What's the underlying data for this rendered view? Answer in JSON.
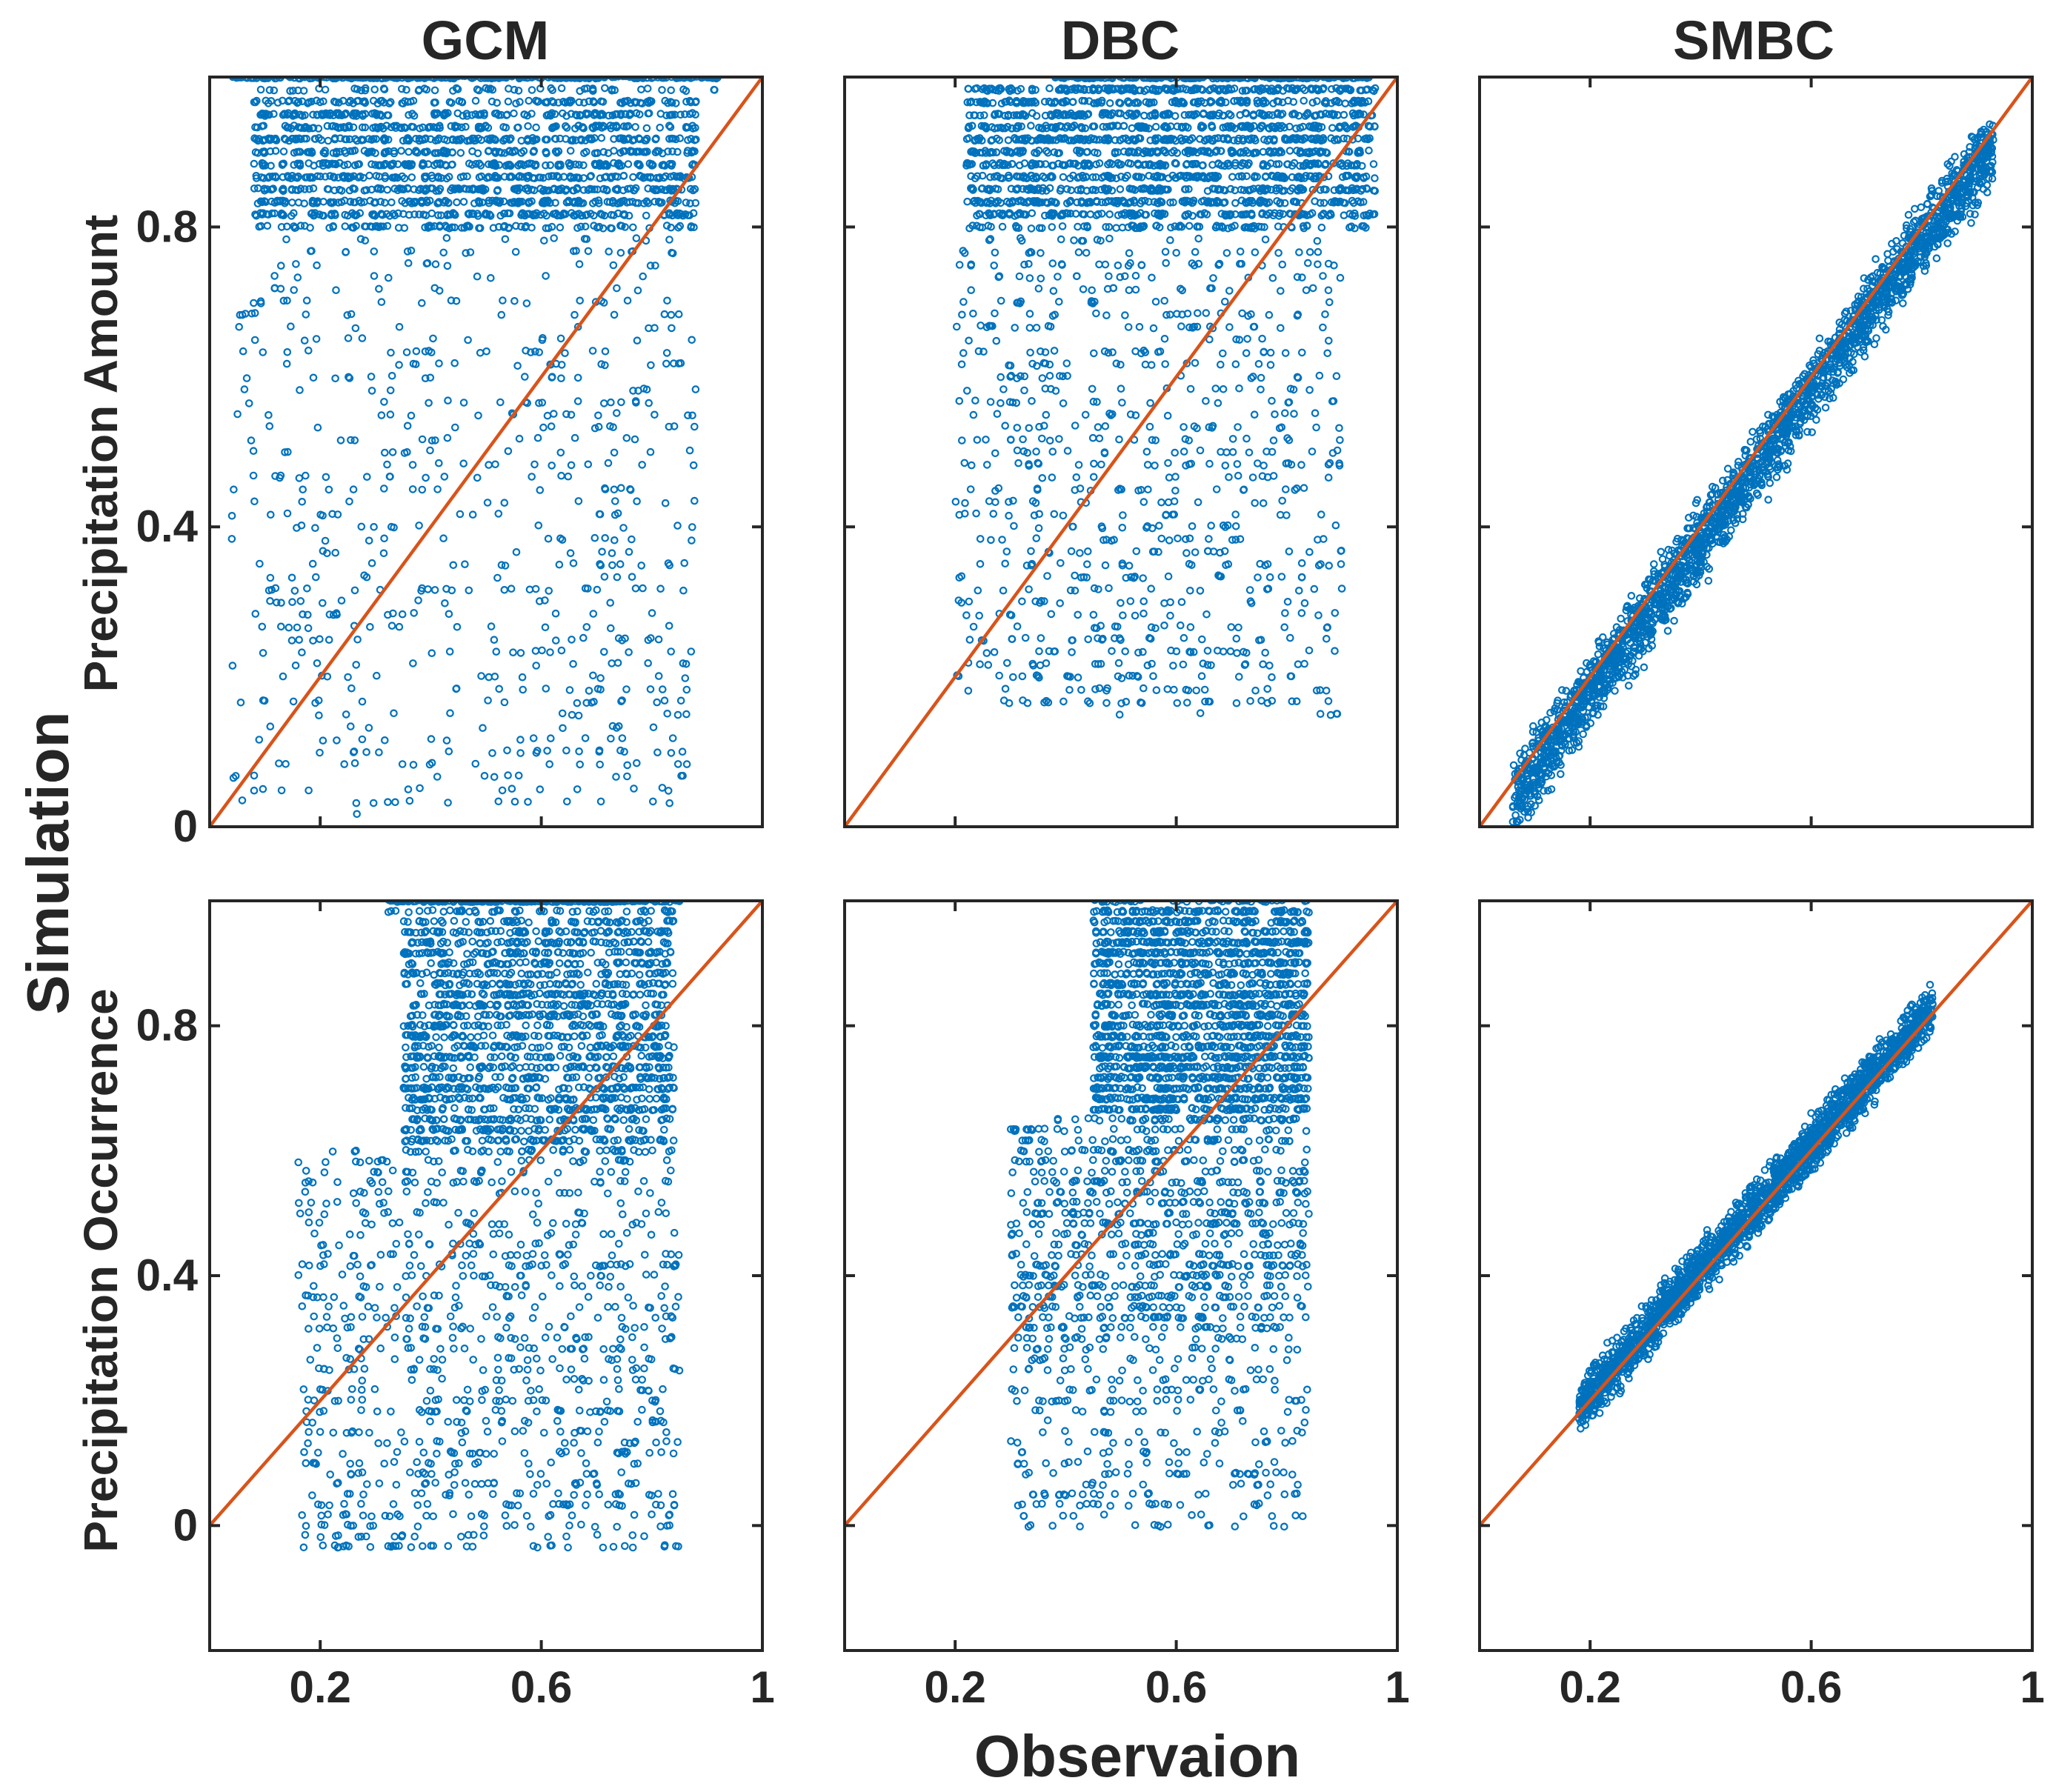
{
  "figure": {
    "x_label": "Observaion",
    "y_label": "Simulation",
    "row_labels": [
      "Precipitation Amount",
      "Precipitation Occurrence"
    ],
    "column_titles": [
      "GCM",
      "DBC",
      "SMBC"
    ]
  },
  "colors": {
    "points": "#0072BD",
    "reference_line": "#D95319",
    "axes": "#262626"
  },
  "chart_data": [
    {
      "id": "amount-gcm",
      "type": "scatter",
      "row": 0,
      "col": 0,
      "title": "GCM",
      "xlim": [
        0,
        1
      ],
      "ylim": [
        0,
        1
      ],
      "xticks": [
        0.2,
        0.6,
        1
      ],
      "xtick_labels": [
        "0.2",
        "0.6",
        "1"
      ],
      "yticks": [
        0,
        0.4,
        0.8
      ],
      "ytick_labels": [
        "0",
        "0.4",
        "0.8"
      ],
      "show_xtick_labels": false,
      "show_ytick_labels": true,
      "reference_line": {
        "from": [
          0,
          0
        ],
        "to": [
          1,
          1
        ]
      },
      "point_groups": [
        {
          "x_range": [
            0.04,
            0.92
          ],
          "y_range": [
            0.99,
            1.0
          ],
          "count": 420
        },
        {
          "x_range": [
            0.08,
            0.88
          ],
          "y_range": [
            0.8,
            0.97
          ],
          "count": 1500
        },
        {
          "x_range": [
            0.04,
            0.88
          ],
          "y_range": [
            0.02,
            0.8
          ],
          "count": 650
        }
      ]
    },
    {
      "id": "amount-dbc",
      "type": "scatter",
      "row": 0,
      "col": 1,
      "title": "DBC",
      "xlim": [
        0,
        1
      ],
      "ylim": [
        0,
        1
      ],
      "xticks": [
        0.2,
        0.6,
        1
      ],
      "xtick_labels": [
        "0.2",
        "0.6",
        "1"
      ],
      "yticks": [
        0,
        0.4,
        0.8
      ],
      "ytick_labels": [
        "0",
        "0.4",
        "0.8"
      ],
      "show_xtick_labels": false,
      "show_ytick_labels": false,
      "reference_line": {
        "from": [
          0,
          0
        ],
        "to": [
          1,
          1
        ]
      },
      "point_groups": [
        {
          "x_range": [
            0.38,
            0.95
          ],
          "y_range": [
            0.99,
            1.0
          ],
          "count": 350
        },
        {
          "x_range": [
            0.22,
            0.96
          ],
          "y_range": [
            0.8,
            0.99
          ],
          "count": 1700
        },
        {
          "x_range": [
            0.2,
            0.9
          ],
          "y_range": [
            0.15,
            0.8
          ],
          "count": 800
        }
      ]
    },
    {
      "id": "amount-smbc",
      "type": "scatter",
      "row": 0,
      "col": 2,
      "title": "SMBC",
      "xlim": [
        0,
        1
      ],
      "ylim": [
        0,
        1
      ],
      "xticks": [
        0.2,
        0.6,
        1
      ],
      "xtick_labels": [
        "0.2",
        "0.6",
        "1"
      ],
      "yticks": [
        0,
        0.4,
        0.8
      ],
      "ytick_labels": [
        "0",
        "0.4",
        "0.8"
      ],
      "show_xtick_labels": false,
      "show_ytick_labels": false,
      "reference_line": {
        "from": [
          0,
          0
        ],
        "to": [
          1,
          1
        ]
      },
      "point_groups": [
        {
          "x_range": [
            0.06,
            0.93
          ],
          "y_center_offset": -0.02,
          "y_spread": 0.035,
          "count": 2400
        }
      ]
    },
    {
      "id": "occurrence-gcm",
      "type": "scatter",
      "row": 1,
      "col": 0,
      "title": "",
      "xlim": [
        0,
        1
      ],
      "ylim": [
        -0.2,
        1
      ],
      "xticks": [
        0.2,
        0.6,
        1
      ],
      "xtick_labels": [
        "0.2",
        "0.6",
        "1"
      ],
      "yticks": [
        0,
        0.4,
        0.8
      ],
      "ytick_labels": [
        "0",
        "0.4",
        "0.8"
      ],
      "show_xtick_labels": true,
      "show_ytick_labels": true,
      "reference_line": {
        "from": [
          -0.2,
          -0.2
        ],
        "to": [
          1,
          1
        ]
      },
      "point_groups": [
        {
          "x_range": [
            0.32,
            0.85
          ],
          "y_range": [
            0.99,
            1.0
          ],
          "count": 300
        },
        {
          "x_range": [
            0.35,
            0.84
          ],
          "y_range": [
            0.6,
            0.97
          ],
          "count": 1600
        },
        {
          "x_range": [
            0.16,
            0.85
          ],
          "y_range": [
            -0.04,
            0.6
          ],
          "count": 900
        }
      ]
    },
    {
      "id": "occurrence-dbc",
      "type": "scatter",
      "row": 1,
      "col": 1,
      "title": "",
      "xlim": [
        0,
        1
      ],
      "ylim": [
        -0.2,
        1
      ],
      "xticks": [
        0.2,
        0.6,
        1
      ],
      "xtick_labels": [
        "0.2",
        "0.6",
        "1"
      ],
      "yticks": [
        0,
        0.4,
        0.8
      ],
      "ytick_labels": [
        "0",
        "0.4",
        "0.8"
      ],
      "show_xtick_labels": true,
      "show_ytick_labels": false,
      "reference_line": {
        "from": [
          -0.2,
          -0.2
        ],
        "to": [
          1,
          1
        ]
      },
      "point_groups": [
        {
          "x_range": [
            0.45,
            0.84
          ],
          "y_range": [
            0.65,
            1.0
          ],
          "count": 1800
        },
        {
          "x_range": [
            0.3,
            0.84
          ],
          "y_range": [
            0.3,
            0.65
          ],
          "count": 800
        },
        {
          "x_range": [
            0.3,
            0.84
          ],
          "y_range": [
            0.0,
            0.3
          ],
          "count": 300
        }
      ]
    },
    {
      "id": "occurrence-smbc",
      "type": "scatter",
      "row": 1,
      "col": 2,
      "title": "",
      "xlim": [
        0,
        1
      ],
      "ylim": [
        -0.2,
        1
      ],
      "xticks": [
        0.2,
        0.6,
        1
      ],
      "xtick_labels": [
        "0.2",
        "0.6",
        "1"
      ],
      "yticks": [
        0,
        0.4,
        0.8
      ],
      "ytick_labels": [
        "0",
        "0.4",
        "0.8"
      ],
      "show_xtick_labels": true,
      "show_ytick_labels": false,
      "reference_line": {
        "from": [
          -0.2,
          -0.2
        ],
        "to": [
          1,
          1
        ]
      },
      "point_groups": [
        {
          "x_range": [
            0.18,
            0.82
          ],
          "y_center_offset": 0.01,
          "y_spread": 0.03,
          "count": 2200
        }
      ]
    }
  ]
}
